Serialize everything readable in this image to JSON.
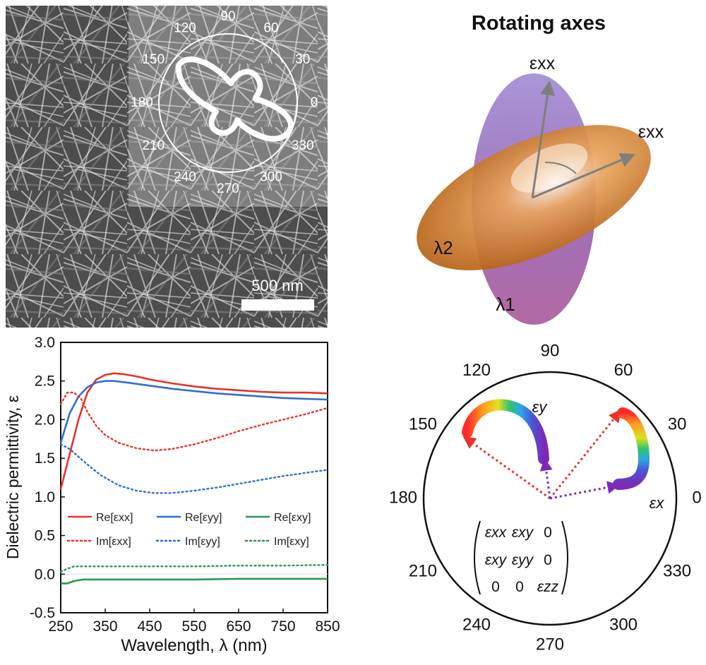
{
  "sem_panel": {
    "scale_bar_label": "500 nm",
    "inset_polar": {
      "angle_labels": [
        "0",
        "30",
        "60",
        "90",
        "120",
        "150",
        "180",
        "210",
        "240",
        "270",
        "300",
        "330"
      ]
    }
  },
  "ellipsoid_panel": {
    "title": "Rotating axes",
    "axis_label_vertical": "εxx",
    "axis_label_rotated": "εxx",
    "lambda_1": "λ1",
    "lambda_2": "λ2",
    "colors": {
      "orange": "#c8741e",
      "purple": "#9a7bc4"
    }
  },
  "chart_data": [
    {
      "type": "line",
      "title": "",
      "xlabel": "Wavelength, λ (nm)",
      "ylabel": "Dielectric permittivity, ε",
      "xlim": [
        250,
        850
      ],
      "ylim": [
        -0.5,
        3.0
      ],
      "xticks": [
        "250",
        "350",
        "450",
        "550",
        "650",
        "750",
        "850"
      ],
      "yticks": [
        "-0.5",
        "0.0",
        "0.5",
        "1.0",
        "1.5",
        "2.0",
        "2.5",
        "3.0"
      ],
      "legend": [
        "Re[εxx]",
        "Re[εyy]",
        "Re[εxy]",
        "Im[εxx]",
        "Im[εyy]",
        "Im[εxy]"
      ],
      "series": [
        {
          "name": "Re[εxx]",
          "color": "#e8322a",
          "dash": "solid",
          "x": [
            250,
            270,
            290,
            310,
            330,
            350,
            370,
            390,
            420,
            450,
            500,
            550,
            600,
            650,
            700,
            750,
            800,
            850
          ],
          "y": [
            1.1,
            1.55,
            2.0,
            2.35,
            2.52,
            2.58,
            2.6,
            2.59,
            2.56,
            2.52,
            2.47,
            2.43,
            2.4,
            2.38,
            2.36,
            2.35,
            2.35,
            2.34
          ]
        },
        {
          "name": "Re[εyy]",
          "color": "#2f6fd0",
          "dash": "solid",
          "x": [
            250,
            270,
            290,
            310,
            330,
            350,
            370,
            400,
            450,
            500,
            550,
            600,
            650,
            700,
            750,
            800,
            850
          ],
          "y": [
            1.7,
            2.08,
            2.3,
            2.42,
            2.48,
            2.5,
            2.5,
            2.48,
            2.44,
            2.4,
            2.37,
            2.34,
            2.32,
            2.3,
            2.28,
            2.27,
            2.26
          ]
        },
        {
          "name": "Re[εxy]",
          "color": "#2a9a52",
          "dash": "solid",
          "x": [
            250,
            265,
            280,
            300,
            350,
            450,
            550,
            650,
            750,
            850
          ],
          "y": [
            -0.12,
            -0.12,
            -0.09,
            -0.07,
            -0.07,
            -0.07,
            -0.07,
            -0.06,
            -0.06,
            -0.06
          ]
        },
        {
          "name": "Im[εxx]",
          "color": "#e8322a",
          "dash": "dotted",
          "x": [
            250,
            265,
            280,
            295,
            310,
            330,
            350,
            380,
            420,
            460,
            500,
            550,
            600,
            650,
            700,
            750,
            800,
            850
          ],
          "y": [
            2.2,
            2.35,
            2.35,
            2.28,
            2.1,
            1.92,
            1.8,
            1.7,
            1.63,
            1.6,
            1.62,
            1.68,
            1.76,
            1.85,
            1.93,
            2.0,
            2.07,
            2.15
          ]
        },
        {
          "name": "Im[εyy]",
          "color": "#2f6fd0",
          "dash": "dotted",
          "x": [
            250,
            270,
            290,
            310,
            340,
            380,
            420,
            460,
            500,
            550,
            600,
            650,
            700,
            750,
            800,
            850
          ],
          "y": [
            1.68,
            1.62,
            1.52,
            1.42,
            1.28,
            1.15,
            1.08,
            1.05,
            1.05,
            1.08,
            1.12,
            1.17,
            1.22,
            1.27,
            1.31,
            1.35
          ]
        },
        {
          "name": "Im[εxy]",
          "color": "#2a9a52",
          "dash": "dotted",
          "x": [
            250,
            265,
            280,
            300,
            350,
            450,
            550,
            650,
            750,
            850
          ],
          "y": [
            0.03,
            0.07,
            0.1,
            0.1,
            0.1,
            0.1,
            0.1,
            0.11,
            0.11,
            0.12
          ]
        }
      ]
    },
    {
      "type": "polar",
      "angle_labels": [
        "0",
        "30",
        "60",
        "90",
        "120",
        "150",
        "180",
        "210",
        "240",
        "270",
        "300",
        "330"
      ],
      "curve_labels": {
        "ey": "εy",
        "ex": "εx"
      },
      "matrix": [
        [
          "εxx",
          "εxy",
          "0"
        ],
        [
          "εxy",
          "εyy",
          "0"
        ],
        [
          "0",
          "0",
          "εzz"
        ]
      ]
    }
  ]
}
